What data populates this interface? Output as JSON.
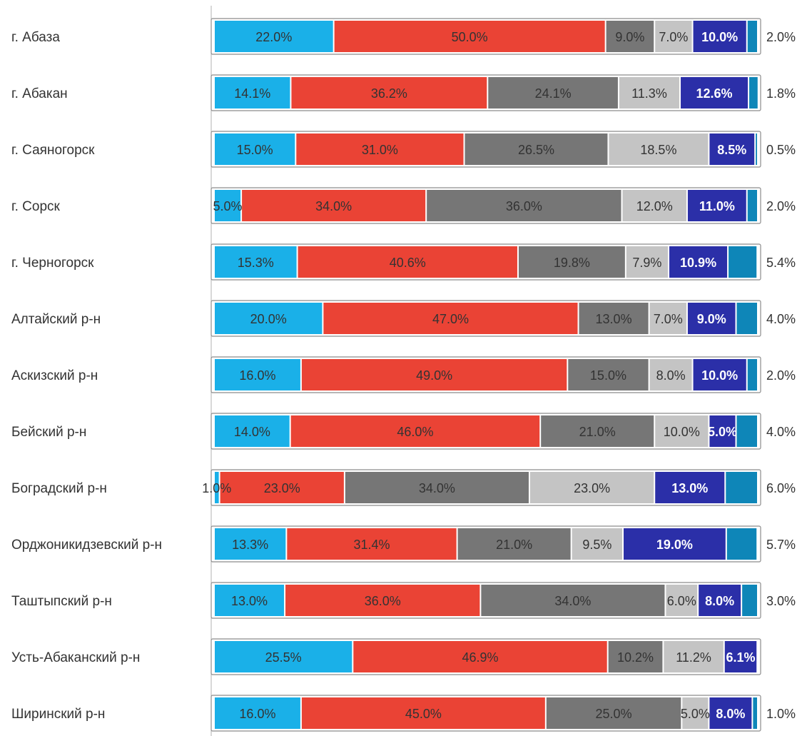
{
  "chart_data": {
    "type": "bar",
    "stacked": true,
    "orientation": "horizontal",
    "normalized_percent": true,
    "title": "",
    "xlabel": "",
    "ylabel": "",
    "xlim": [
      0,
      100
    ],
    "grid": false,
    "legend": "none",
    "categories": [
      "г. Абаза",
      "г. Абакан",
      "г. Саяногорск",
      "г. Сорск",
      "г. Черногорск",
      "Алтайский р-н",
      "Аскизский р-н",
      "Бейский р-н",
      "Боградский р-н",
      "Орджоникидзевский р-н",
      "Таштыпский р-н",
      "Усть-Абаканский р-н",
      "Ширинский р-н"
    ],
    "series": [
      {
        "color": "#1ab0e8",
        "label_color": "#333333",
        "label_bold": false,
        "values": [
          22.0,
          14.1,
          15.0,
          5.0,
          15.3,
          20.0,
          16.0,
          14.0,
          1.0,
          13.3,
          13.0,
          25.5,
          16.0
        ],
        "labels": [
          "22.0%",
          "14.1%",
          "15.0%",
          "5.0%",
          "15.3%",
          "20.0%",
          "16.0%",
          "14.0%",
          "1.0%",
          "13.3%",
          "13.0%",
          "25.5%",
          "16.0%"
        ]
      },
      {
        "color": "#ea4335",
        "label_color": "#333333",
        "label_bold": false,
        "values": [
          50.0,
          36.2,
          31.0,
          34.0,
          40.6,
          47.0,
          49.0,
          46.0,
          23.0,
          31.4,
          36.0,
          46.9,
          45.0
        ],
        "labels": [
          "50.0%",
          "36.2%",
          "31.0%",
          "34.0%",
          "40.6%",
          "47.0%",
          "49.0%",
          "46.0%",
          "23.0%",
          "31.4%",
          "36.0%",
          "46.9%",
          "45.0%"
        ]
      },
      {
        "color": "#767676",
        "label_color": "#333333",
        "label_bold": false,
        "values": [
          9.0,
          24.1,
          26.5,
          36.0,
          19.8,
          13.0,
          15.0,
          21.0,
          34.0,
          21.0,
          34.0,
          10.2,
          25.0
        ],
        "labels": [
          "9.0%",
          "24.1%",
          "26.5%",
          "36.0%",
          "19.8%",
          "13.0%",
          "15.0%",
          "21.0%",
          "34.0%",
          "21.0%",
          "34.0%",
          "10.2%",
          "25.0%"
        ]
      },
      {
        "color": "#c4c4c4",
        "label_color": "#333333",
        "label_bold": false,
        "values": [
          7.0,
          11.3,
          18.5,
          12.0,
          7.9,
          7.0,
          8.0,
          10.0,
          23.0,
          9.5,
          6.0,
          11.2,
          5.0
        ],
        "labels": [
          "7.0%",
          "11.3%",
          "18.5%",
          "12.0%",
          "7.9%",
          "7.0%",
          "8.0%",
          "10.0%",
          "23.0%",
          "9.5%",
          "6.0%",
          "11.2%",
          "5.0%"
        ]
      },
      {
        "color": "#2b2fa8",
        "label_color": "#ffffff",
        "label_bold": true,
        "values": [
          10.0,
          12.6,
          8.5,
          11.0,
          10.9,
          9.0,
          10.0,
          5.0,
          13.0,
          19.0,
          8.0,
          6.1,
          8.0
        ],
        "labels": [
          "10.0%",
          "12.6%",
          "8.5%",
          "11.0%",
          "10.9%",
          "9.0%",
          "10.0%",
          "5.0%",
          "13.0%",
          "19.0%",
          "8.0%",
          "6.1%",
          "8.0%"
        ]
      },
      {
        "color": "#0e86b8",
        "label_color": "#333333",
        "label_bold": false,
        "values": [
          2.0,
          1.8,
          0.5,
          2.0,
          5.4,
          4.0,
          2.0,
          4.0,
          6.0,
          5.7,
          3.0,
          0.0,
          1.0
        ],
        "labels": [
          "2.0%",
          "1.8%",
          "0.5%",
          "2.0%",
          "5.4%",
          "4.0%",
          "2.0%",
          "4.0%",
          "6.0%",
          "5.7%",
          "3.0%",
          "",
          "1.0%"
        ]
      }
    ]
  }
}
